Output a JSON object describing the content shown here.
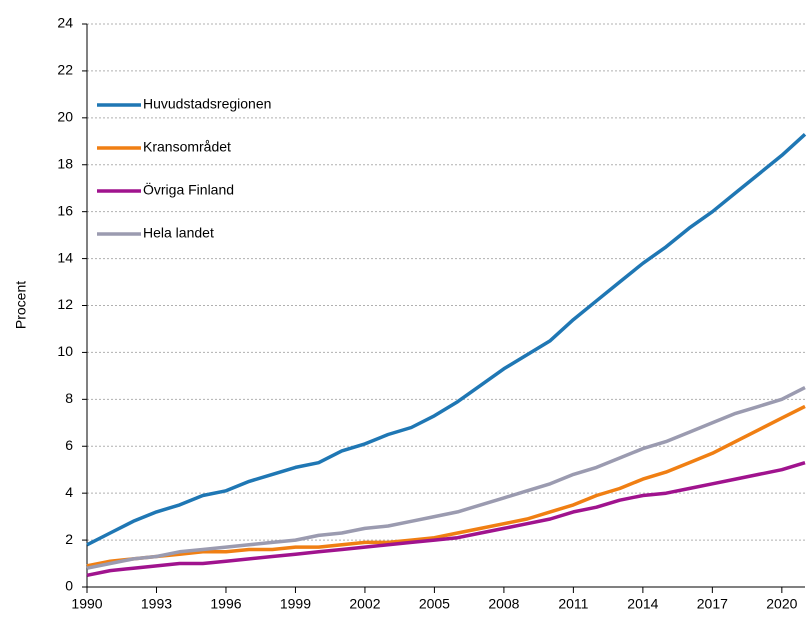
{
  "chart_data": {
    "type": "line",
    "y_label": "Procent",
    "x": [
      1990,
      1991,
      1992,
      1993,
      1994,
      1995,
      1996,
      1997,
      1998,
      1999,
      2000,
      2001,
      2002,
      2003,
      2004,
      2005,
      2006,
      2007,
      2008,
      2009,
      2010,
      2011,
      2012,
      2013,
      2014,
      2015,
      2016,
      2017,
      2018,
      2019,
      2020,
      2021
    ],
    "xlim": [
      1990,
      2021
    ],
    "xticks": [
      1990,
      1993,
      1996,
      1999,
      2002,
      2005,
      2008,
      2011,
      2014,
      2017,
      2020
    ],
    "ylim": [
      0,
      24
    ],
    "yticks": [
      0,
      2,
      4,
      6,
      8,
      10,
      12,
      14,
      16,
      18,
      20,
      22,
      24
    ],
    "grid": true,
    "legend": "upper left",
    "series": [
      {
        "name": "Huvudstadsregionen",
        "color": "#1f77b4",
        "values": [
          1.8,
          2.3,
          2.8,
          3.2,
          3.5,
          3.9,
          4.1,
          4.5,
          4.8,
          5.1,
          5.3,
          5.8,
          6.1,
          6.5,
          6.8,
          7.3,
          7.9,
          8.6,
          9.3,
          9.9,
          10.5,
          11.4,
          12.2,
          13.0,
          13.8,
          14.5,
          15.3,
          16.0,
          16.8,
          17.6,
          18.4,
          19.3
        ]
      },
      {
        "name": "Kransområdet",
        "color": "#f07f13",
        "values": [
          0.9,
          1.1,
          1.2,
          1.3,
          1.4,
          1.5,
          1.5,
          1.6,
          1.6,
          1.7,
          1.7,
          1.8,
          1.9,
          1.9,
          2.0,
          2.1,
          2.3,
          2.5,
          2.7,
          2.9,
          3.2,
          3.5,
          3.9,
          4.2,
          4.6,
          4.9,
          5.3,
          5.7,
          6.2,
          6.7,
          7.2,
          7.7
        ]
      },
      {
        "name": "Övriga Finland",
        "color": "#a0138e",
        "values": [
          0.5,
          0.7,
          0.8,
          0.9,
          1.0,
          1.0,
          1.1,
          1.2,
          1.3,
          1.4,
          1.5,
          1.6,
          1.7,
          1.8,
          1.9,
          2.0,
          2.1,
          2.3,
          2.5,
          2.7,
          2.9,
          3.2,
          3.4,
          3.7,
          3.9,
          4.0,
          4.2,
          4.4,
          4.6,
          4.8,
          5.0,
          5.3
        ]
      },
      {
        "name": "Hela landet",
        "color": "#9b9bb0",
        "values": [
          0.8,
          1.0,
          1.2,
          1.3,
          1.5,
          1.6,
          1.7,
          1.8,
          1.9,
          2.0,
          2.2,
          2.3,
          2.5,
          2.6,
          2.8,
          3.0,
          3.2,
          3.5,
          3.8,
          4.1,
          4.4,
          4.8,
          5.1,
          5.5,
          5.9,
          6.2,
          6.6,
          7.0,
          7.4,
          7.7,
          8.0,
          8.5
        ]
      }
    ]
  }
}
